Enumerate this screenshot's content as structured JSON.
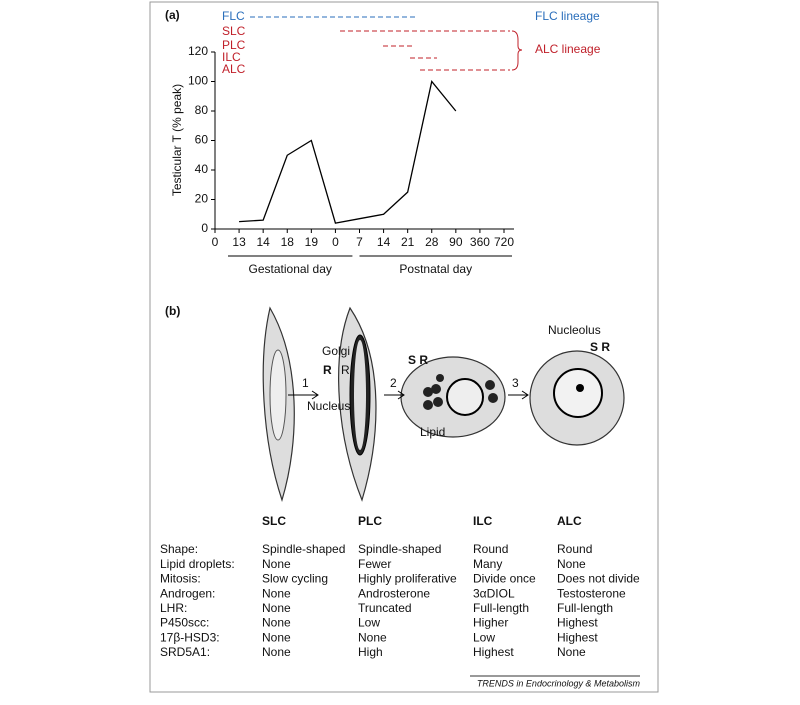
{
  "chart_data": {
    "type": "line",
    "panel": "(a)",
    "ylabel": "Testicular T (% peak)",
    "categories": [
      "0",
      "13",
      "14",
      "18",
      "19",
      "0",
      "7",
      "14",
      "21",
      "28",
      "90",
      "360",
      "720"
    ],
    "series": [
      {
        "color": "#000000",
        "values": [
          null,
          5,
          6,
          50,
          60,
          4,
          7,
          10,
          25,
          100,
          80,
          null,
          null
        ]
      }
    ],
    "ylim": [
      0,
      120
    ],
    "yticks": [
      0,
      20,
      40,
      60,
      80,
      100,
      120
    ],
    "groups": [
      "Gestational day",
      "Postnatal day"
    ]
  },
  "lineages": {
    "cells": [
      "FLC",
      "SLC",
      "PLC",
      "ILC",
      "ALC"
    ],
    "flc_lineage": "FLC lineage",
    "alc_lineage": "ALC lineage"
  },
  "diagram": {
    "panel": "(b)",
    "steps": [
      "1",
      "2",
      "3"
    ],
    "labels": [
      "Golgi",
      "R",
      "R",
      "Nucleus",
      "S R",
      "Lipid",
      "Nucleolus",
      "S R"
    ]
  },
  "table": {
    "columns": [
      "SLC",
      "PLC",
      "ILC",
      "ALC"
    ],
    "rows": [
      [
        "Shape:",
        "Spindle-shaped",
        "Spindle-shaped",
        "Round",
        "Round"
      ],
      [
        "Lipid droplets:",
        "None",
        "Fewer",
        "Many",
        "None"
      ],
      [
        "Mitosis:",
        "Slow cycling",
        "Highly proliferative",
        "Divide once",
        "Does not divide"
      ],
      [
        "Androgen:",
        "None",
        "Androsterone",
        "3αDIOL",
        "Testosterone"
      ],
      [
        "LHR:",
        "None",
        "Truncated",
        "Full-length",
        "Full-length"
      ],
      [
        "P450scc:",
        "None",
        "Low",
        "Higher",
        "Highest"
      ],
      [
        "17β-HSD3:",
        "None",
        "None",
        "Low",
        "Highest"
      ],
      [
        "SRD5A1:",
        "None",
        "High",
        "Highest",
        "None"
      ]
    ]
  },
  "footer": "TRENDS in Endocrinology & Metabolism"
}
